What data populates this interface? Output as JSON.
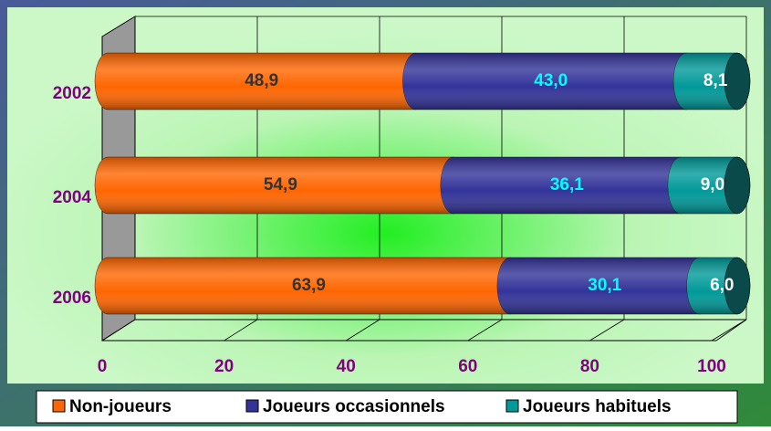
{
  "chart_data": {
    "type": "stacked-bar-horizontal",
    "categories": [
      "2002",
      "2004",
      "2006"
    ],
    "series": [
      {
        "name": "Non-joueurs",
        "color": "#ff6600",
        "values": [
          48.9,
          54.9,
          63.9
        ],
        "value_labels": [
          "48,9",
          "54,9",
          "63,9"
        ],
        "label_color": "#333333"
      },
      {
        "name": "Joueurs occasionnels",
        "color": "#333399",
        "values": [
          43.0,
          36.1,
          30.1
        ],
        "value_labels": [
          "43,0",
          "36,1",
          "30,1"
        ],
        "label_color": "#00ffff"
      },
      {
        "name": "Joueurs habituels",
        "color": "#009999",
        "values": [
          8.1,
          9.0,
          6.0
        ],
        "value_labels": [
          "8,1",
          "9,0",
          "6,0"
        ],
        "label_color": "#ffffff"
      }
    ],
    "xlim": [
      0,
      100
    ],
    "xticks": [
      0,
      20,
      40,
      60,
      80,
      100
    ],
    "grid": true,
    "legend": "bottom"
  }
}
